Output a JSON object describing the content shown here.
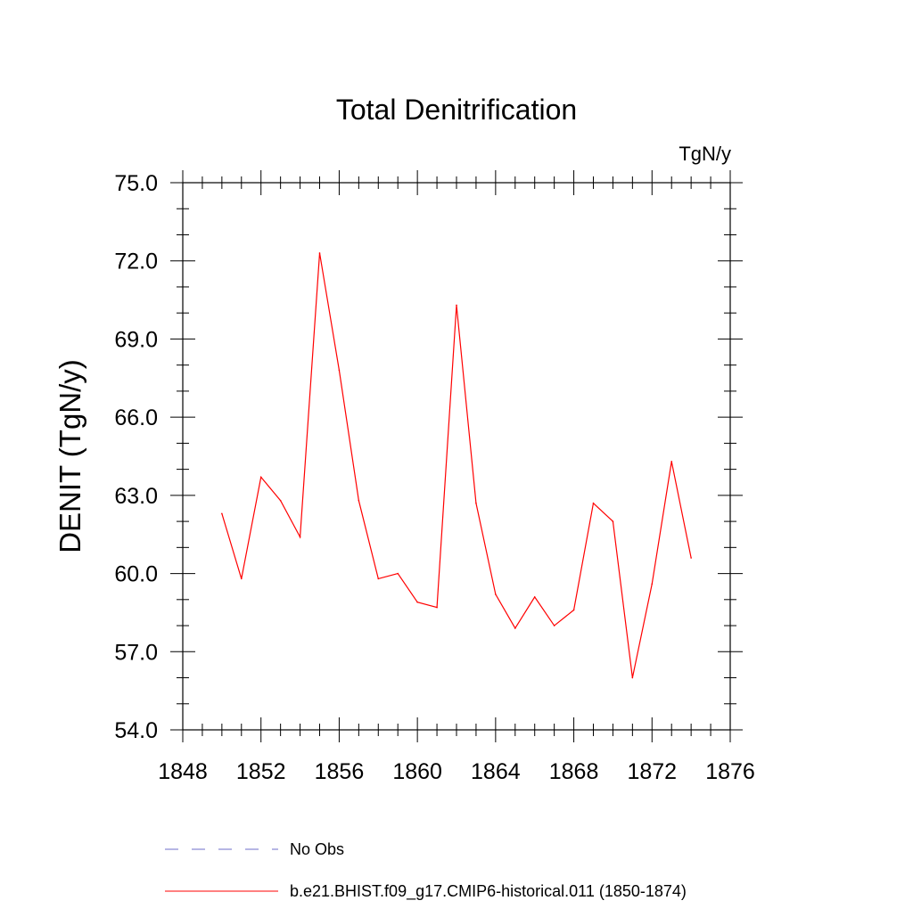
{
  "chart_data": {
    "type": "line",
    "title": "Total Denitrification",
    "units_label": "TgN/y",
    "xlabel": "",
    "ylabel": "DENIT  (TgN/y)",
    "xlim": [
      1848,
      1876
    ],
    "ylim": [
      54.0,
      75.0
    ],
    "x_ticks": [
      1848,
      1852,
      1856,
      1860,
      1864,
      1868,
      1872,
      1876
    ],
    "x_tick_labels": [
      "1848",
      "1852",
      "1856",
      "1860",
      "1864",
      "1868",
      "1872",
      "1876"
    ],
    "y_ticks": [
      54,
      57,
      60,
      63,
      66,
      69,
      72,
      75
    ],
    "y_tick_labels": [
      "54.0",
      "57.0",
      "60.0",
      "63.0",
      "66.0",
      "69.0",
      "72.0",
      "75.0"
    ],
    "grid": false,
    "legend_position": "bottom",
    "series": [
      {
        "name": "b.e21.BHIST.f09_g17.CMIP6-historical.011 (1850-1874)",
        "color": "#ff0000",
        "style": "solid",
        "x": [
          1850,
          1851,
          1852,
          1853,
          1854,
          1855,
          1856,
          1857,
          1858,
          1859,
          1860,
          1861,
          1862,
          1863,
          1864,
          1865,
          1866,
          1867,
          1868,
          1869,
          1870,
          1871,
          1872,
          1873,
          1874
        ],
        "values": [
          62.3,
          59.8,
          63.7,
          62.8,
          61.4,
          72.3,
          67.8,
          62.8,
          59.8,
          60.0,
          58.9,
          58.7,
          70.3,
          62.7,
          59.2,
          57.9,
          59.1,
          58.0,
          58.6,
          62.7,
          62.0,
          56.0,
          59.6,
          64.3,
          60.6
        ]
      }
    ],
    "legend": [
      {
        "label": "No Obs",
        "color": "#6e6ec8",
        "style": "dashed"
      },
      {
        "label": "b.e21.BHIST.f09_g17.CMIP6-historical.011 (1850-1874)",
        "color": "#ff0000",
        "style": "solid"
      }
    ]
  }
}
